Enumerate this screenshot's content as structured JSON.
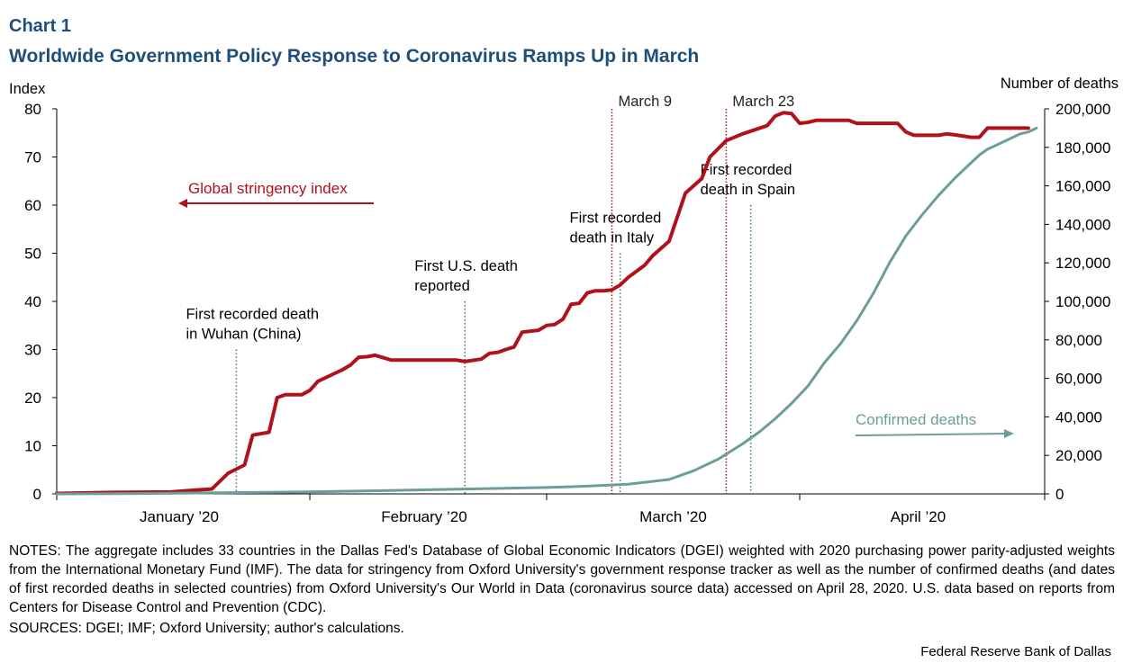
{
  "header": {
    "chart_label": "Chart 1",
    "title": "Worldwide Government Policy Response to Coronavirus Ramps Up in March"
  },
  "colors": {
    "title": "#1f4e79",
    "stringency": "#b0121b",
    "deaths": "#6b9e9a",
    "event_marker": "#3d7a6e",
    "march_marker": "#b0121b"
  },
  "chart_data": {
    "type": "line",
    "title": "Worldwide Government Policy Response to Coronavirus Ramps Up in March",
    "left_axis": {
      "label": "Index",
      "min": 0,
      "max": 80,
      "ticks": [
        0,
        10,
        20,
        30,
        40,
        50,
        60,
        70,
        80
      ]
    },
    "right_axis": {
      "label": "Number  of deaths",
      "min": 0,
      "max": 200000,
      "ticks": [
        "0",
        "20,000",
        "40,000",
        "60,000",
        "80,000",
        "100,000",
        "120,000",
        "140,000",
        "160,000",
        "180,000",
        "200,000"
      ]
    },
    "x_axis": {
      "start": "2020-01-01",
      "end": "2020-04-30",
      "num_days": 121,
      "boundaries": [
        31,
        60,
        91
      ],
      "month_labels": [
        "January ’20",
        "February ’20",
        "March ’20",
        "April ’20"
      ],
      "month_label_days": [
        15,
        45,
        75.5,
        105.5
      ]
    },
    "series": [
      {
        "name": "Global stringency index",
        "axis": "left",
        "days": [
          0,
          7,
          14,
          17,
          19,
          21,
          23,
          24,
          26,
          27,
          28,
          30,
          31,
          32,
          35,
          36,
          37,
          38,
          39,
          41,
          42,
          43,
          44,
          45,
          46,
          47,
          49,
          50,
          52,
          53,
          54,
          55,
          56,
          57,
          59,
          60,
          61,
          62,
          63,
          64,
          65,
          66,
          67,
          68,
          69,
          70,
          72,
          73,
          75,
          77,
          79,
          80,
          82,
          84,
          87,
          88,
          89,
          90,
          91,
          92,
          93,
          95,
          97,
          98,
          100,
          102,
          103,
          104,
          105,
          107,
          108,
          109,
          110,
          112,
          113,
          114,
          117,
          118,
          119
        ],
        "values": [
          0.1,
          0.3,
          0.4,
          0.8,
          1.0,
          4.3,
          6.0,
          12.2,
          12.8,
          20.0,
          20.6,
          20.6,
          21.5,
          23.4,
          25.8,
          26.8,
          28.4,
          28.5,
          28.8,
          27.8,
          27.8,
          27.8,
          27.8,
          27.8,
          27.8,
          27.8,
          27.8,
          27.5,
          28.0,
          29.2,
          29.4,
          30.0,
          30.5,
          33.6,
          34.0,
          35.0,
          35.2,
          36.3,
          39.4,
          39.6,
          41.8,
          42.2,
          42.2,
          42.4,
          43.4,
          45.0,
          47.5,
          49.5,
          52.5,
          62.5,
          65.5,
          70.0,
          73.4,
          74.8,
          76.5,
          78.5,
          79.2,
          79.0,
          77.0,
          77.2,
          77.6,
          77.6,
          77.6,
          77.0,
          77.0,
          77.0,
          77.0,
          75.2,
          74.5,
          74.5,
          74.5,
          74.8,
          74.6,
          74.1,
          74.1,
          76.0,
          76.0,
          76.0,
          76.0
        ]
      },
      {
        "name": "Confirmed deaths",
        "axis": "right",
        "days": [
          0,
          10,
          20,
          30,
          40,
          50,
          55,
          60,
          65,
          70,
          75,
          78,
          81,
          84,
          86,
          88,
          90,
          92,
          94,
          96,
          98,
          100,
          102,
          104,
          106,
          108,
          110,
          112,
          113,
          114,
          115,
          116,
          117,
          118,
          119,
          120
        ],
        "values": [
          0,
          200,
          600,
          1000,
          1700,
          2500,
          2900,
          3300,
          4000,
          5000,
          7500,
          12000,
          18000,
          26000,
          32000,
          39000,
          47000,
          56000,
          68000,
          78000,
          90000,
          104000,
          120000,
          134000,
          145000,
          155000,
          164000,
          172000,
          176000,
          179000,
          181000,
          183000,
          185000,
          187000,
          188000,
          190000
        ]
      }
    ],
    "event_markers": [
      {
        "day": 22,
        "lines": [
          "First recorded death",
          "in Wuhan (China)"
        ]
      },
      {
        "day": 50,
        "lines": [
          "First U.S. death",
          "reported"
        ]
      },
      {
        "day": 69,
        "lines": [
          "First recorded",
          "death in Italy"
        ]
      },
      {
        "day": 85,
        "lines": [
          "First recorded",
          "death in Spain"
        ]
      }
    ],
    "policy_markers": [
      {
        "day": 68,
        "label": "March 9"
      },
      {
        "day": 82,
        "label": "March 23"
      }
    ],
    "annotations": {
      "stringency_label": "Global stringency index",
      "deaths_label": "Confirmed deaths"
    }
  },
  "footer": {
    "notes": "NOTES: The aggregate includes 33 countries in the Dallas Fed's Database of Global Economic Indicators (DGEI) weighted with 2020 purchasing power parity-adjusted weights from the International Monetary Fund (IMF). The data for stringency from Oxford University's government response tracker as well as the number of confirmed deaths (and dates of first recorded deaths in selected countries) from Oxford University's Our World in Data (coronavirus source data) accessed on April 28, 2020. U.S. data based on reports from Centers for Disease Control and Prevention (CDC).",
    "sources": "SOURCES: DGEI; IMF; Oxford University; author's calculations.",
    "credit": "Federal Reserve Bank of Dallas"
  }
}
